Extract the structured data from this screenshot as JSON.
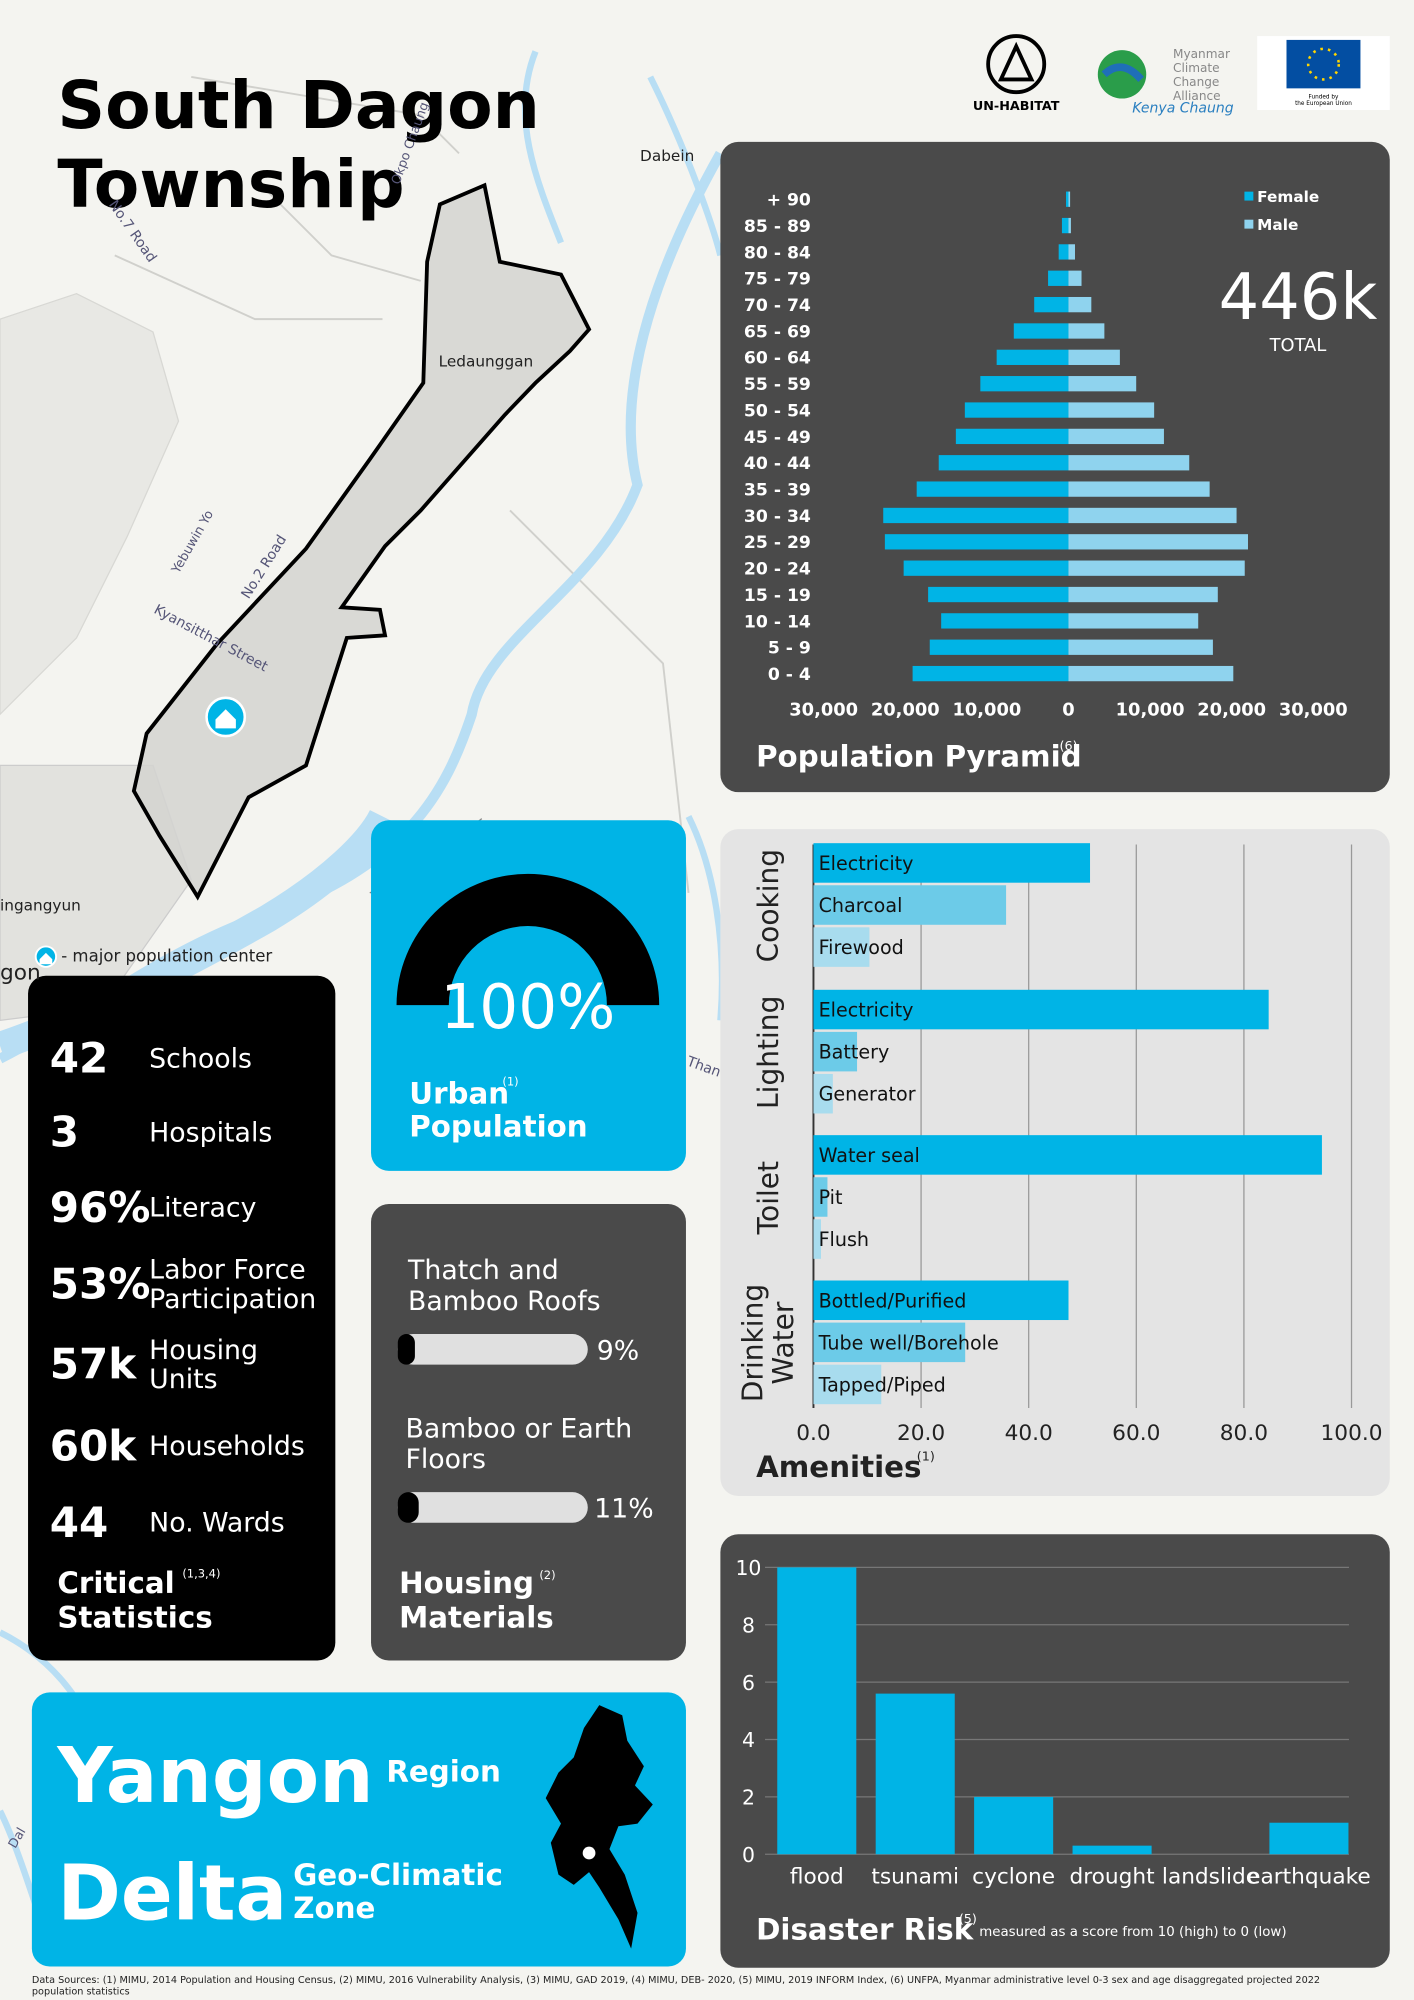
{
  "header": {
    "title_line1": "South Dagon",
    "title_line2": "Township"
  },
  "logos": {
    "unhabitat": "UN-HABITAT",
    "mcca": [
      "Myanmar",
      "Climate",
      "Change",
      "Alliance"
    ],
    "kenya": "Kenya Chaung",
    "eu": [
      "Funded by",
      "the European Union"
    ]
  },
  "map": {
    "labels": [
      "Dabein",
      "Ledaunggan",
      "ingangyun",
      "gon",
      "Okpo Chaung",
      "No.2 Road",
      "No.7 Road",
      "Kyansitthar Street",
      "Yebuwin Yo",
      "Than",
      "Dal"
    ],
    "legend": "- major population center"
  },
  "chart_data": [
    {
      "type": "pyramid",
      "title": "Population Pyramid",
      "title_note": "(6)",
      "total": "446k",
      "total_label": "TOTAL",
      "categories": [
        "0 - 4",
        "5 - 9",
        "10 - 14",
        "15 - 19",
        "20 - 24",
        "25 - 29",
        "30 - 34",
        "35 - 39",
        "40 - 44",
        "45 - 49",
        "50 - 54",
        "55 - 59",
        "60 - 64",
        "65 - 69",
        "70 - 74",
        "75 - 79",
        "80 - 84",
        "85 - 89",
        "+ 90"
      ],
      "series": [
        {
          "name": "Female",
          "color": "#00b4e6",
          "values": [
            19100,
            17000,
            15600,
            17200,
            20200,
            22500,
            22700,
            18600,
            15900,
            13800,
            12700,
            10800,
            8800,
            6700,
            4200,
            2500,
            1200,
            800,
            300
          ]
        },
        {
          "name": "Male",
          "color": "#8fd3ee",
          "values": [
            20200,
            17700,
            15900,
            18300,
            21600,
            22000,
            20600,
            17300,
            14800,
            11700,
            10500,
            8300,
            6300,
            4400,
            2800,
            1600,
            800,
            300,
            200
          ]
        }
      ],
      "xlim": [
        -30000,
        30000
      ],
      "xticks": [
        {
          "value": -30000,
          "label": "30,000"
        },
        {
          "value": -20000,
          "label": "20,000"
        },
        {
          "value": -10000,
          "label": "10,000"
        },
        0,
        {
          "value": 10000,
          "label": "10,000"
        },
        {
          "value": 20000,
          "label": "20,000"
        },
        {
          "value": 30000,
          "label": "30,000"
        }
      ]
    },
    {
      "type": "hbar",
      "title": "Amenities",
      "title_note": "(1)",
      "colors": [
        "#00b4e6",
        "#6ccbe8",
        "#a8dcee"
      ],
      "groups": [
        {
          "name": [
            "Cooking"
          ],
          "categories": [
            "Electricity",
            "Charcoal",
            "Firewood"
          ],
          "values": [
            51.4,
            35.8,
            10.4
          ]
        },
        {
          "name": [
            "Lighting"
          ],
          "categories": [
            "Electricity",
            "Battery",
            "Generator"
          ],
          "values": [
            84.6,
            8.1,
            3.6
          ]
        },
        {
          "name": [
            "Toilet"
          ],
          "categories": [
            "Water seal",
            "Pit",
            "Flush"
          ],
          "values": [
            94.5,
            2.6,
            1.4
          ]
        },
        {
          "name": [
            "Drinking",
            "Water"
          ],
          "categories": [
            "Bottled/Purified",
            "Tube well/Borehole",
            "Tapped/Piped"
          ],
          "values": [
            47.4,
            28.2,
            12.6
          ]
        }
      ],
      "xlim": [
        0,
        100
      ],
      "xticks": [
        {
          "value": 0,
          "label": "0.0"
        },
        {
          "value": 20,
          "label": "20.0"
        },
        {
          "value": 40,
          "label": "40.0"
        },
        {
          "value": 60,
          "label": "60.0"
        },
        {
          "value": 80,
          "label": "80.0"
        },
        {
          "value": 100,
          "label": "100.0"
        }
      ],
      "grid": true
    },
    {
      "type": "bar",
      "title": "Disaster Risk",
      "title_note": "(5)",
      "subtitle": "measured as a score from 10 (high) to 0 (low)",
      "categories": [
        "flood",
        "tsunami",
        "cyclone",
        "drought",
        "landslide",
        "earthquake"
      ],
      "values": [
        10,
        5.6,
        2.0,
        0.3,
        0,
        1.1
      ],
      "color": "#00b4e6",
      "ylim": [
        0,
        10
      ],
      "yticks": [
        0,
        2,
        4,
        6,
        8,
        10
      ],
      "grid": true
    }
  ],
  "urban": {
    "value": 100,
    "value_label": "100%",
    "label_line1": "Urban",
    "label_line2": "Population",
    "note": "(1)"
  },
  "stats": {
    "items": [
      {
        "value": "42",
        "label": [
          "Schools"
        ]
      },
      {
        "value": "3",
        "label": [
          "Hospitals"
        ]
      },
      {
        "value": "96%",
        "label": [
          "Literacy"
        ]
      },
      {
        "value": "53%",
        "label": [
          "Labor Force",
          "Participation"
        ]
      },
      {
        "value": "57k",
        "label": [
          "Housing",
          "Units"
        ]
      },
      {
        "value": "60k",
        "label": [
          "Households"
        ]
      },
      {
        "value": "44",
        "label": [
          "No. Wards"
        ]
      }
    ],
    "title": [
      "Critical",
      "Statistics"
    ],
    "note": "(1,3,4)"
  },
  "housing": {
    "items": [
      {
        "label": [
          "Thatch and",
          "Bamboo Roofs"
        ],
        "value": 9,
        "value_label": "9%"
      },
      {
        "label": [
          "Bamboo or Earth",
          "Floors"
        ],
        "value": 11,
        "value_label": "11%"
      }
    ],
    "title": [
      "Housing",
      "Materials"
    ],
    "note": "(2)"
  },
  "region": {
    "name": "Yangon",
    "name_label": "Region",
    "zone": "Delta",
    "zone_label": [
      "Geo-Climatic",
      "Zone"
    ]
  },
  "sources": [
    "Data Sources: (1) MIMU, 2014 Population and Housing Census, (2) MIMU, 2016 Vulnerability Analysis, (3) MIMU, GAD 2019, (4) MIMU, DEB- 2020, (5) MIMU, 2019 INFORM Index, (6) UNFPA,  Myanmar administrative level 0-3 sex and age disaggregated projected 2022",
    "population statistics"
  ]
}
